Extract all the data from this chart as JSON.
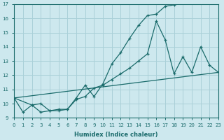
{
  "xlabel": "Humidex (Indice chaleur)",
  "bg_color": "#cde8ee",
  "grid_color": "#aad0d8",
  "line_color": "#1a6b6b",
  "xmin": 0,
  "xmax": 23,
  "ymin": 9,
  "ymax": 17,
  "line1_x": [
    0,
    1,
    2,
    3,
    4,
    5,
    6,
    7,
    8,
    9,
    10,
    11,
    12,
    13,
    14,
    15,
    16,
    17,
    18
  ],
  "line1_y": [
    10.4,
    9.4,
    9.9,
    9.4,
    9.5,
    9.5,
    9.6,
    10.4,
    11.3,
    10.5,
    11.4,
    12.8,
    13.6,
    14.6,
    15.5,
    16.2,
    16.3,
    16.85,
    16.95
  ],
  "line2_x": [
    0,
    2,
    3,
    4,
    5,
    6,
    7,
    8,
    9,
    10,
    11,
    12,
    13,
    14,
    15,
    16,
    17,
    18,
    19,
    20,
    21,
    22,
    23
  ],
  "line2_y": [
    10.4,
    9.9,
    10.0,
    9.5,
    9.6,
    9.6,
    10.3,
    10.5,
    11.1,
    11.3,
    11.7,
    12.1,
    12.5,
    13.0,
    13.5,
    15.8,
    14.5,
    12.1,
    13.3,
    12.2,
    14.0,
    12.7,
    12.2
  ],
  "line3_x": [
    0,
    23
  ],
  "line3_y": [
    10.4,
    12.2
  ],
  "xtick_labels": [
    "0",
    "1",
    "2",
    "3",
    "4",
    "5",
    "6",
    "7",
    "8",
    "9",
    "10",
    "11",
    "12",
    "13",
    "14",
    "15",
    "16",
    "17",
    "18",
    "19",
    "20",
    "21",
    "22",
    "23"
  ],
  "ytick_labels": [
    "9",
    "10",
    "11",
    "12",
    "13",
    "14",
    "15",
    "16",
    "17"
  ]
}
